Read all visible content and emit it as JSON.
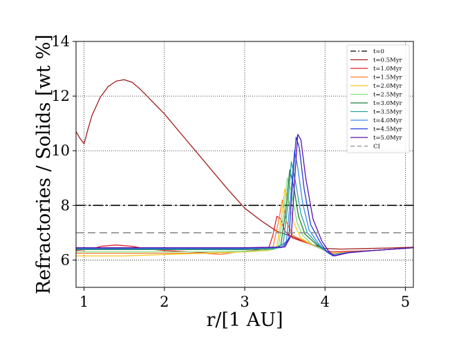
{
  "chart_data": {
    "type": "line",
    "title": "",
    "xlabel": "r/[1 AU]",
    "ylabel": "Refractories / Solids [wt %]",
    "xlim": [
      0.9,
      5.1
    ],
    "ylim": [
      5,
      14
    ],
    "xticks": [
      1,
      2,
      3,
      4,
      5
    ],
    "yticks": [
      6,
      8,
      10,
      12,
      14
    ],
    "grid": true,
    "grid_style": "dotted",
    "legend_position": "top-right",
    "series": [
      {
        "name": "t=0",
        "color": "#000000",
        "dash": "dashdot",
        "x": [
          0.9,
          5.1
        ],
        "y": [
          8.0,
          8.0
        ]
      },
      {
        "name": "t=0.5Myr",
        "color": "#a01c1c",
        "dash": "solid",
        "x": [
          0.9,
          0.95,
          1.0,
          1.05,
          1.1,
          1.2,
          1.3,
          1.4,
          1.5,
          1.6,
          1.7,
          1.8,
          1.9,
          2.0,
          2.2,
          2.4,
          2.6,
          2.8,
          3.0,
          3.2,
          3.4,
          3.6,
          3.8,
          4.0,
          4.2,
          4.5,
          4.8,
          5.1
        ],
        "y": [
          10.7,
          10.45,
          10.25,
          10.8,
          11.3,
          11.95,
          12.35,
          12.55,
          12.6,
          12.5,
          12.25,
          11.95,
          11.65,
          11.35,
          10.65,
          9.95,
          9.25,
          8.55,
          7.9,
          7.45,
          7.05,
          6.85,
          6.6,
          6.42,
          6.4,
          6.42,
          6.44,
          6.47
        ]
      },
      {
        "name": "t=1.0Myr",
        "color": "#e0202a",
        "dash": "solid",
        "x": [
          0.9,
          1.1,
          1.2,
          1.4,
          1.6,
          1.8,
          2.0,
          2.3,
          2.6,
          2.9,
          3.1,
          3.3,
          3.35,
          3.4,
          3.45,
          3.5,
          3.6,
          3.8,
          4.0,
          4.1,
          4.3,
          4.6,
          5.1
        ],
        "y": [
          6.35,
          6.4,
          6.5,
          6.55,
          6.5,
          6.4,
          6.35,
          6.3,
          6.25,
          6.3,
          6.35,
          6.45,
          6.9,
          7.6,
          7.5,
          7.05,
          6.8,
          6.6,
          6.35,
          6.3,
          6.32,
          6.35,
          6.45
        ]
      },
      {
        "name": "t=1.5Myr",
        "color": "#ff7c30",
        "dash": "solid",
        "x": [
          0.9,
          1.5,
          2.0,
          2.5,
          2.7,
          2.9,
          3.2,
          3.35,
          3.42,
          3.47,
          3.52,
          3.6,
          3.8,
          4.0,
          4.1,
          4.3,
          4.6,
          5.1
        ],
        "y": [
          6.25,
          6.25,
          6.25,
          6.25,
          6.2,
          6.3,
          6.35,
          6.45,
          7.4,
          8.2,
          7.4,
          6.9,
          6.6,
          6.35,
          6.25,
          6.3,
          6.35,
          6.45
        ]
      },
      {
        "name": "t=2.0Myr",
        "color": "#f8c51a",
        "dash": "solid",
        "x": [
          0.9,
          1.5,
          2.0,
          2.5,
          3.0,
          3.3,
          3.4,
          3.45,
          3.5,
          3.55,
          3.62,
          3.7,
          3.85,
          4.0,
          4.1,
          4.3,
          4.6,
          5.1
        ],
        "y": [
          6.15,
          6.15,
          6.2,
          6.25,
          6.3,
          6.35,
          6.5,
          7.4,
          8.6,
          8.1,
          7.3,
          6.8,
          6.55,
          6.35,
          6.25,
          6.28,
          6.35,
          6.45
        ]
      },
      {
        "name": "t=2.5Myr",
        "color": "#80e080",
        "dash": "solid",
        "x": [
          0.9,
          1.5,
          2.0,
          2.5,
          3.0,
          3.35,
          3.42,
          3.48,
          3.53,
          3.58,
          3.65,
          3.72,
          3.85,
          4.0,
          4.1,
          4.3,
          4.6,
          5.1
        ],
        "y": [
          6.3,
          6.3,
          6.3,
          6.3,
          6.32,
          6.38,
          6.5,
          7.6,
          9.0,
          8.5,
          7.4,
          6.9,
          6.55,
          6.35,
          6.2,
          6.28,
          6.35,
          6.45
        ]
      },
      {
        "name": "t=3.0Myr",
        "color": "#1d7a3a",
        "dash": "solid",
        "x": [
          0.9,
          1.5,
          2.0,
          2.5,
          3.0,
          3.38,
          3.45,
          3.51,
          3.56,
          3.61,
          3.67,
          3.75,
          3.9,
          4.0,
          4.1,
          4.3,
          4.6,
          5.1
        ],
        "y": [
          6.38,
          6.38,
          6.38,
          6.38,
          6.38,
          6.42,
          6.55,
          7.8,
          9.3,
          8.7,
          7.6,
          6.95,
          6.55,
          6.35,
          6.2,
          6.28,
          6.35,
          6.45
        ]
      },
      {
        "name": "t=3.5Myr",
        "color": "#2aa09a",
        "dash": "solid",
        "x": [
          0.9,
          1.5,
          2.0,
          2.5,
          3.0,
          3.4,
          3.48,
          3.54,
          3.58,
          3.63,
          3.7,
          3.78,
          3.9,
          4.0,
          4.1,
          4.3,
          4.6,
          5.1
        ],
        "y": [
          6.4,
          6.4,
          6.4,
          6.4,
          6.4,
          6.43,
          6.6,
          8.1,
          9.6,
          8.9,
          7.7,
          7.0,
          6.6,
          6.35,
          6.2,
          6.28,
          6.35,
          6.45
        ]
      },
      {
        "name": "t=4.0Myr",
        "color": "#3b86e8",
        "dash": "solid",
        "x": [
          0.9,
          1.5,
          2.0,
          2.5,
          3.0,
          3.45,
          3.52,
          3.58,
          3.62,
          3.66,
          3.72,
          3.8,
          3.92,
          4.0,
          4.1,
          4.3,
          4.6,
          5.1
        ],
        "y": [
          6.42,
          6.42,
          6.42,
          6.42,
          6.42,
          6.45,
          6.7,
          8.6,
          10.0,
          9.4,
          8.1,
          7.1,
          6.6,
          6.35,
          6.2,
          6.28,
          6.35,
          6.45
        ]
      },
      {
        "name": "t=4.5Myr",
        "color": "#1f38d6",
        "dash": "solid",
        "x": [
          0.9,
          1.5,
          2.0,
          2.5,
          3.0,
          3.48,
          3.55,
          3.6,
          3.64,
          3.68,
          3.74,
          3.82,
          3.94,
          4.02,
          4.1,
          4.3,
          4.6,
          5.1
        ],
        "y": [
          6.44,
          6.44,
          6.44,
          6.44,
          6.44,
          6.47,
          6.8,
          9.0,
          10.5,
          10.1,
          8.6,
          7.3,
          6.65,
          6.3,
          6.15,
          6.27,
          6.35,
          6.45
        ]
      },
      {
        "name": "t=5.0Myr",
        "color": "#5a0fa8",
        "dash": "solid",
        "x": [
          0.9,
          1.5,
          2.0,
          2.5,
          3.0,
          3.5,
          3.58,
          3.63,
          3.66,
          3.7,
          3.76,
          3.85,
          3.96,
          4.05,
          4.12,
          4.3,
          4.6,
          5.1
        ],
        "y": [
          6.45,
          6.45,
          6.45,
          6.45,
          6.45,
          6.48,
          6.9,
          9.3,
          10.6,
          10.4,
          9.0,
          7.5,
          6.7,
          6.3,
          6.15,
          6.27,
          6.35,
          6.45
        ]
      },
      {
        "name": "CI",
        "color": "#8c8c8c",
        "dash": "dashed",
        "x": [
          0.9,
          5.1
        ],
        "y": [
          7.0,
          7.0
        ]
      }
    ]
  }
}
